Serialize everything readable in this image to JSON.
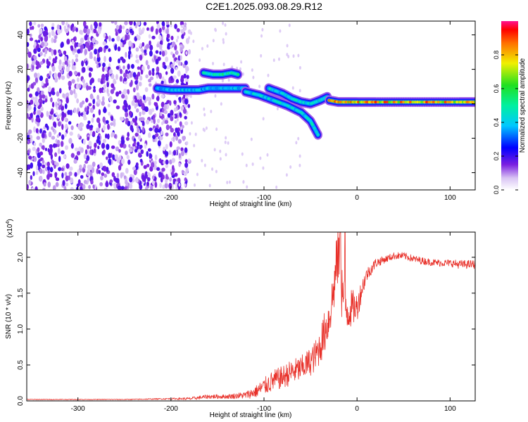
{
  "title": "C2E1.2025.093.08.29.R12",
  "colors": {
    "signal": "#e8312a",
    "axis": "#000000",
    "background": "#ffffff"
  },
  "chart_data": [
    {
      "type": "heatmap",
      "xlabel": "Height of straight line (km)",
      "ylabel": "Frequency (Hz)",
      "xlim": [
        -355,
        127
      ],
      "ylim": [
        -50,
        48
      ],
      "xticks": [
        -300,
        -200,
        -100,
        0,
        100
      ],
      "xtick_labels": [
        "-300",
        "-200",
        "-100",
        "0",
        "100"
      ],
      "yticks": [
        -40,
        -20,
        0,
        20,
        40
      ],
      "ytick_labels": [
        "-40",
        "-20",
        "0",
        "20",
        "40"
      ],
      "colorbar": {
        "label": "Normalized spectral amplitude",
        "range": [
          0,
          1
        ],
        "ticks": [
          0.0,
          0.2,
          0.4,
          0.6,
          0.8
        ],
        "tick_labels": [
          "0.0",
          "0.2",
          "0.4",
          "0.6",
          "0.8"
        ],
        "colormap": "rainbow"
      },
      "features": [
        {
          "name": "broadband noise",
          "x_range": [
            -355,
            -180
          ],
          "amplitude": 0.15
        },
        {
          "name": "band",
          "x": [
            -215,
            -200,
            -185,
            -170,
            -160,
            -150,
            -140,
            -130,
            -120
          ],
          "y": [
            9,
            8,
            8,
            8,
            9,
            9,
            9,
            9,
            9
          ],
          "amplitude": 0.4
        },
        {
          "name": "band",
          "x": [
            -165,
            -155,
            -145,
            -135,
            -128
          ],
          "y": [
            18,
            17,
            17,
            18,
            17
          ],
          "amplitude": 0.5
        },
        {
          "name": "band",
          "x": [
            -120,
            -105,
            -90,
            -75,
            -60,
            -50,
            -42
          ],
          "y": [
            7,
            5,
            2,
            -1,
            -5,
            -10,
            -18
          ],
          "amplitude": 0.45
        },
        {
          "name": "band",
          "x": [
            -95,
            -80,
            -70,
            -60,
            -50,
            -40,
            -32
          ],
          "y": [
            9,
            6,
            3,
            1,
            0,
            2,
            4
          ],
          "amplitude": 0.45
        },
        {
          "name": "band",
          "x": [
            -30,
            -20,
            -10,
            0,
            20,
            50,
            80,
            110,
            127
          ],
          "y": [
            2,
            1,
            1,
            1,
            1,
            1,
            1,
            1,
            1
          ],
          "amplitude": 0.85
        }
      ]
    },
    {
      "type": "line",
      "xlabel": "Height of straight line (km)",
      "ylabel": "SNR (10 * v/v)",
      "scale_label": "(x10",
      "scale_exponent": "4",
      "xlim": [
        -355,
        127
      ],
      "ylim": [
        0,
        2.35
      ],
      "xticks": [
        -300,
        -200,
        -100,
        0,
        100
      ],
      "xtick_labels": [
        "-300",
        "-200",
        "-100",
        "0",
        "100"
      ],
      "yticks": [
        0.0,
        0.5,
        1.0,
        1.5,
        2.0
      ],
      "ytick_labels": [
        "0.0",
        "0.5",
        "1.0",
        "1.5",
        "2.0"
      ],
      "series": [
        {
          "x": [
            -355,
            -300,
            -250,
            -200,
            -180,
            -160,
            -140,
            -120,
            -110,
            -100,
            -90,
            -80,
            -70,
            -60,
            -50,
            -45,
            -40,
            -35,
            -30,
            -25,
            -22,
            -20,
            -17,
            -14,
            -10,
            -5,
            0,
            5,
            10,
            20,
            30,
            40,
            50,
            60,
            70,
            80,
            90,
            100,
            110,
            120,
            127
          ],
          "y": [
            0.02,
            0.02,
            0.02,
            0.03,
            0.03,
            0.06,
            0.06,
            0.08,
            0.12,
            0.2,
            0.28,
            0.33,
            0.4,
            0.45,
            0.55,
            0.62,
            0.75,
            0.95,
            1.15,
            1.55,
            1.9,
            2.1,
            1.6,
            1.4,
            1.25,
            1.3,
            1.3,
            1.55,
            1.75,
            1.92,
            1.97,
            2.02,
            2.02,
            1.98,
            1.95,
            1.93,
            1.92,
            1.92,
            1.9,
            1.9,
            1.9
          ],
          "noise": [
            0.005,
            0.005,
            0.005,
            0.01,
            0.02,
            0.03,
            0.03,
            0.05,
            0.08,
            0.12,
            0.15,
            0.16,
            0.18,
            0.18,
            0.2,
            0.22,
            0.25,
            0.3,
            0.3,
            0.35,
            0.4,
            0.5,
            0.45,
            0.35,
            0.3,
            0.25,
            0.2,
            0.15,
            0.1,
            0.07,
            0.05,
            0.05,
            0.05,
            0.05,
            0.05,
            0.05,
            0.05,
            0.05,
            0.06,
            0.06,
            0.06
          ],
          "peaks": [
            {
              "x": -18,
              "y": 2.35
            },
            {
              "x": -13,
              "y": 2.35
            }
          ]
        }
      ]
    }
  ]
}
